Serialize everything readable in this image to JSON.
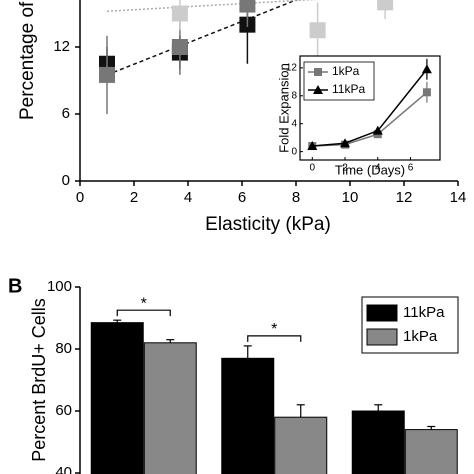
{
  "chart_data": [
    {
      "type": "scatter",
      "xlabel": "Elasticity (kPa)",
      "ylabel": "Percentage of",
      "xlim": [
        0,
        14
      ],
      "ylim": [
        0,
        18
      ],
      "xticks": [
        0,
        2,
        4,
        6,
        8,
        10,
        12,
        14
      ],
      "yticks": [
        0,
        6,
        12
      ],
      "series": [
        {
          "color": "#111111",
          "x": [
            1,
            3.7,
            6.2
          ],
          "values": [
            10.5,
            11.5,
            14
          ],
          "errors": [
            1.5,
            1.5,
            3.5
          ]
        },
        {
          "color": "#777777",
          "x": [
            1,
            3.7,
            6.2
          ],
          "values": [
            9.5,
            12,
            15.8
          ],
          "errors": [
            3.5,
            2.5,
            2
          ]
        },
        {
          "color": "#cccccc",
          "x": [
            3.7,
            8.8,
            11.3
          ],
          "values": [
            15,
            13.5,
            16
          ],
          "errors": [
            1.5,
            2.5,
            1.5
          ]
        }
      ],
      "fits": [
        {
          "color": "#111111",
          "x": [
            1,
            8.2
          ],
          "values": [
            9.5,
            16.4
          ]
        },
        {
          "color": "#aaaaaa",
          "x": [
            1,
            9
          ],
          "values": [
            15.2,
            16.3
          ]
        }
      ]
    },
    {
      "type": "line",
      "xlabel": "Time (Days)",
      "ylabel": "Fold Expansion",
      "xlim": [
        -0.75,
        7.8
      ],
      "ylim": [
        -1.2,
        13.7
      ],
      "xticks": [
        0,
        2,
        4,
        6
      ],
      "yticks": [
        0,
        4,
        8,
        12
      ],
      "x": [
        0,
        2,
        4,
        7
      ],
      "series": [
        {
          "name": "1kPa",
          "color": "#777777",
          "marker": "square",
          "values": [
            0.8,
            1,
            2.5,
            8.5
          ],
          "errors": [
            0.3,
            0.3,
            0.4,
            1.5
          ]
        },
        {
          "name": "11kPa",
          "color": "#000000",
          "marker": "triangle",
          "values": [
            0.8,
            1.2,
            3,
            11.8
          ],
          "errors": [
            0.3,
            0.3,
            0.4,
            1.5
          ]
        }
      ],
      "legend": "upper left"
    },
    {
      "type": "bar",
      "panel_label": "B",
      "ylabel": "Percent BrdU+ Cells",
      "ylim": [
        40,
        100
      ],
      "yticks": [
        40,
        60,
        80,
        100
      ],
      "categories": [
        null,
        null,
        null
      ],
      "series": [
        {
          "name": "11kPa",
          "color": "#000000",
          "values": [
            88.5,
            77,
            60
          ],
          "errors": [
            0.8,
            4,
            2
          ]
        },
        {
          "name": "1kPa",
          "color": "#888888",
          "values": [
            82,
            58,
            54
          ],
          "errors": [
            1,
            4,
            1
          ]
        }
      ],
      "annotations": [
        {
          "text": "*",
          "group": 0
        },
        {
          "text": "*",
          "group": 1
        }
      ],
      "legend": "upper right"
    }
  ]
}
